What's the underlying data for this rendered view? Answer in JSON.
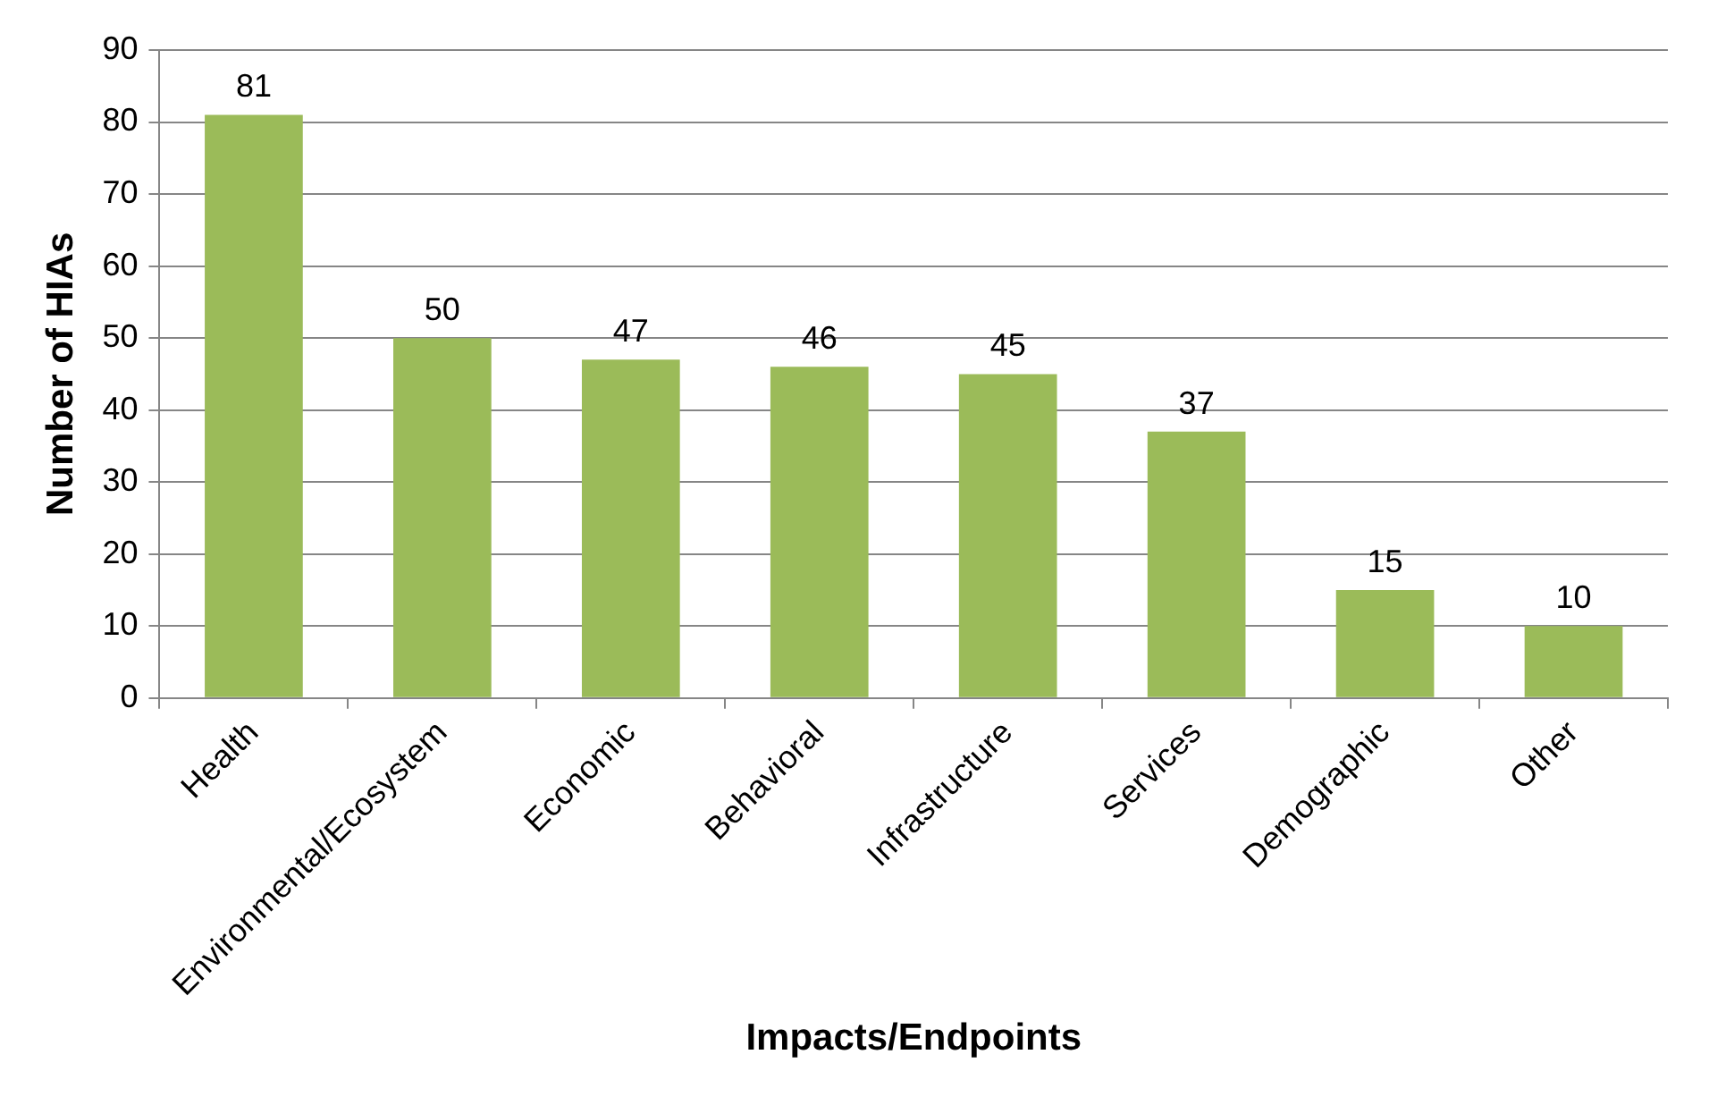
{
  "chart_data": {
    "type": "bar",
    "xlabel": "Impacts/Endpoints",
    "ylabel": "Number of HIAs",
    "categories": [
      "Health",
      "Environmental/Ecosystem",
      "Economic",
      "Behavioral",
      "Infrastructure",
      "Services",
      "Demographic",
      "Other"
    ],
    "values": [
      81,
      50,
      47,
      46,
      45,
      37,
      15,
      10
    ],
    "color": "#9bbb59",
    "ylim": [
      0,
      90
    ],
    "yticks": [
      0,
      10,
      20,
      30,
      40,
      50,
      60,
      70,
      80,
      90
    ],
    "grid": "y",
    "data_labels": true,
    "legend": false
  }
}
